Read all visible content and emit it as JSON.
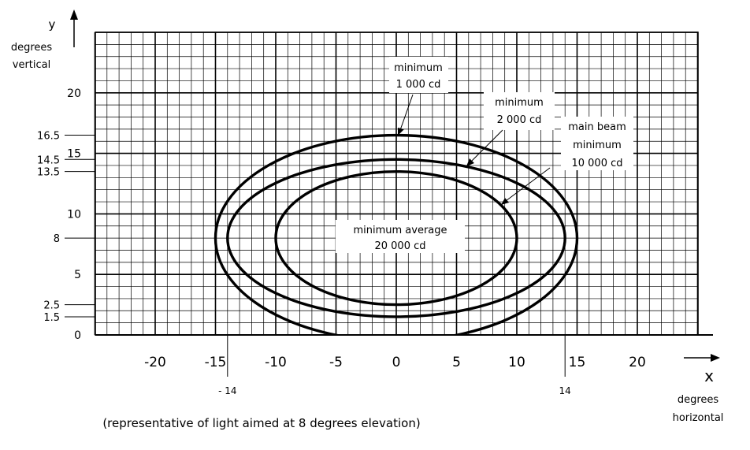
{
  "axes": {
    "y_name": "y",
    "y_caption": [
      "degrees",
      "vertical"
    ],
    "x_name": "x",
    "x_caption": [
      "degrees",
      "horizontal"
    ],
    "x_ticks": [
      {
        "value": -20,
        "label": "-20"
      },
      {
        "value": -15,
        "label": "-15"
      },
      {
        "value": -10,
        "label": "-10"
      },
      {
        "value": -5,
        "label": "-5"
      },
      {
        "value": 0,
        "label": "0"
      },
      {
        "value": 5,
        "label": "5"
      },
      {
        "value": 10,
        "label": "10"
      },
      {
        "value": 15,
        "label": "15"
      },
      {
        "value": 20,
        "label": "20"
      }
    ],
    "x_extra_ticks": [
      {
        "value": -14,
        "label": "- 14"
      },
      {
        "value": 14,
        "label": "14"
      }
    ],
    "y_ticks_major": [
      {
        "value": 20,
        "label": "20"
      },
      {
        "value": 15,
        "label": "15"
      },
      {
        "value": 10,
        "label": "10"
      },
      {
        "value": 5,
        "label": "5"
      },
      {
        "value": 0,
        "label": "0"
      }
    ],
    "y_ticks_extra": [
      {
        "value": 16.5,
        "label": "16.5"
      },
      {
        "value": 14.5,
        "label": "14.5"
      },
      {
        "value": 13.5,
        "label": "13.5"
      },
      {
        "value": 8,
        "label": "8"
      },
      {
        "value": 2.5,
        "label": "2.5"
      },
      {
        "value": 1.5,
        "label": "1.5"
      }
    ],
    "x_range": [
      -25.5,
      25.5
    ],
    "y_range": [
      0,
      25
    ]
  },
  "grid": {
    "minor_step": 1,
    "major_step": 5,
    "color": "#000000"
  },
  "contours": [
    {
      "id": "outer",
      "center": [
        0,
        8
      ],
      "x_half": 15,
      "y_top": 16.5,
      "y_bottom": -0.5
    },
    {
      "id": "middle",
      "center": [
        0,
        8
      ],
      "x_half": 14,
      "y_top": 14.5,
      "y_bottom": 1.5
    },
    {
      "id": "inner",
      "center": [
        0,
        8
      ],
      "x_half": 10,
      "y_top": 13.5,
      "y_bottom": 2.5
    }
  ],
  "labels": {
    "outer": [
      "minimum",
      "1 000 cd"
    ],
    "middle": [
      "minimum",
      "2 000 cd"
    ],
    "inner": [
      "main beam",
      "minimum",
      "10 000 cd"
    ],
    "center": [
      "minimum average",
      "20 000 cd"
    ]
  },
  "note": "(representative of light aimed at 8 degrees elevation)"
}
